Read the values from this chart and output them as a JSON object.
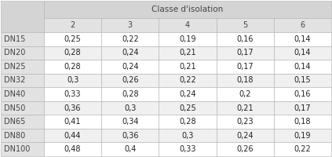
{
  "header_title": "Classe d'isolation",
  "col_headers": [
    "2",
    "3",
    "4",
    "5",
    "6"
  ],
  "row_headers": [
    "DN15",
    "DN20",
    "DN25",
    "DN32",
    "DN40",
    "DN50",
    "DN65",
    "DN80",
    "DN100"
  ],
  "table_data": [
    [
      "0,25",
      "0,22",
      "0,19",
      "0,16",
      "0,14"
    ],
    [
      "0,28",
      "0,24",
      "0,21",
      "0,17",
      "0,14"
    ],
    [
      "0,28",
      "0,24",
      "0,21",
      "0,17",
      "0,14"
    ],
    [
      "0,3",
      "0,26",
      "0,22",
      "0,18",
      "0,15"
    ],
    [
      "0,33",
      "0,28",
      "0,24",
      "0,2",
      "0,16"
    ],
    [
      "0,36",
      "0,3",
      "0,25",
      "0,21",
      "0,17"
    ],
    [
      "0,41",
      "0,34",
      "0,28",
      "0,23",
      "0,18"
    ],
    [
      "0,44",
      "0,36",
      "0,3",
      "0,24",
      "0,19"
    ],
    [
      "0,48",
      "0,4",
      "0,33",
      "0,26",
      "0,22"
    ]
  ],
  "header_bg": "#d4d4d4",
  "col_header_bg": "#e2e2e2",
  "row_header_bg": "#e2e2e2",
  "cell_bg": "#ffffff",
  "border_color": "#b0b0b0",
  "text_color": "#222222",
  "header_text_color": "#444444",
  "font_size": 7.0,
  "header_font_size": 7.5,
  "fig_width": 4.23,
  "fig_height": 2.0,
  "dpi": 100
}
